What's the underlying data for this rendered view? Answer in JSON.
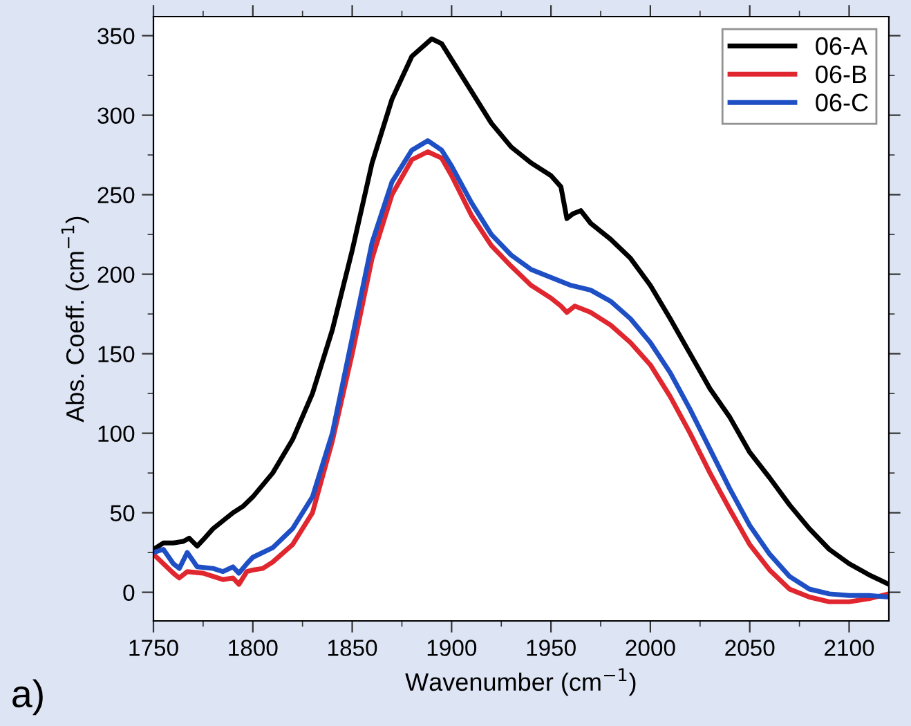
{
  "chart_data": {
    "type": "line",
    "xlabel": "Wavenumber (cm$^{−1}$)",
    "ylabel": "Abs. Coeff. (cm$^{−1}$)",
    "annotations": [
      "a)"
    ],
    "xlim": [
      1750,
      2120
    ],
    "xticks": [
      1750,
      1800,
      1850,
      1900,
      1950,
      2000,
      2050,
      2100
    ],
    "ylim": [
      -18,
      362
    ],
    "yticks": [
      0,
      50,
      100,
      150,
      200,
      250,
      300,
      350
    ],
    "grid": false,
    "legend": "top right",
    "marker": "none",
    "line_style": "solid",
    "series": [
      {
        "name": "06-A",
        "color": "#000000",
        "x": [
          1750,
          1755,
          1760,
          1765,
          1768,
          1772,
          1775,
          1780,
          1785,
          1790,
          1795,
          1800,
          1810,
          1820,
          1830,
          1840,
          1850,
          1860,
          1870,
          1880,
          1890,
          1895,
          1900,
          1910,
          1920,
          1930,
          1940,
          1950,
          1955,
          1958,
          1961,
          1965,
          1970,
          1980,
          1990,
          2000,
          2010,
          2020,
          2030,
          2040,
          2050,
          2060,
          2070,
          2080,
          2090,
          2100,
          2110,
          2120
        ],
        "values": [
          27,
          31,
          31,
          32,
          34,
          29,
          33,
          40,
          45,
          50,
          54,
          60,
          75,
          96,
          125,
          165,
          215,
          270,
          310,
          337,
          348,
          345,
          335,
          315,
          295,
          280,
          270,
          262,
          255,
          235,
          238,
          240,
          232,
          222,
          210,
          193,
          172,
          150,
          128,
          110,
          88,
          72,
          55,
          40,
          27,
          18,
          11,
          5
        ]
      },
      {
        "name": "06-B",
        "color": "#e0262e",
        "x": [
          1750,
          1755,
          1760,
          1763,
          1767,
          1775,
          1780,
          1785,
          1790,
          1793,
          1797,
          1800,
          1805,
          1810,
          1820,
          1830,
          1840,
          1850,
          1860,
          1870,
          1880,
          1888,
          1895,
          1900,
          1910,
          1920,
          1930,
          1940,
          1950,
          1955,
          1958,
          1962,
          1970,
          1980,
          1990,
          2000,
          2010,
          2020,
          2030,
          2040,
          2050,
          2060,
          2070,
          2080,
          2090,
          2100,
          2110,
          2120
        ],
        "values": [
          24,
          18,
          12,
          9,
          13,
          12,
          10,
          8,
          9,
          5,
          13,
          14,
          15,
          19,
          30,
          50,
          95,
          150,
          210,
          250,
          272,
          277,
          273,
          262,
          237,
          218,
          205,
          193,
          185,
          180,
          176,
          180,
          176,
          168,
          157,
          143,
          123,
          100,
          75,
          52,
          30,
          14,
          2,
          -3,
          -6,
          -6,
          -4,
          -1
        ]
      },
      {
        "name": "06-C",
        "color": "#1f4fc4",
        "x": [
          1750,
          1755,
          1760,
          1763,
          1767,
          1772,
          1780,
          1785,
          1790,
          1793,
          1797,
          1800,
          1810,
          1820,
          1830,
          1840,
          1850,
          1860,
          1870,
          1880,
          1888,
          1895,
          1900,
          1910,
          1920,
          1930,
          1940,
          1950,
          1960,
          1970,
          1980,
          1990,
          2000,
          2010,
          2020,
          2030,
          2040,
          2050,
          2060,
          2070,
          2080,
          2090,
          2100,
          2110,
          2120
        ],
        "values": [
          25,
          27,
          18,
          15,
          25,
          16,
          15,
          13,
          16,
          12,
          18,
          22,
          28,
          40,
          60,
          100,
          160,
          220,
          258,
          278,
          284,
          278,
          268,
          245,
          225,
          212,
          203,
          198,
          193,
          190,
          183,
          172,
          157,
          138,
          115,
          90,
          65,
          42,
          24,
          10,
          2,
          -1,
          -2,
          -2,
          -3
        ]
      }
    ]
  }
}
